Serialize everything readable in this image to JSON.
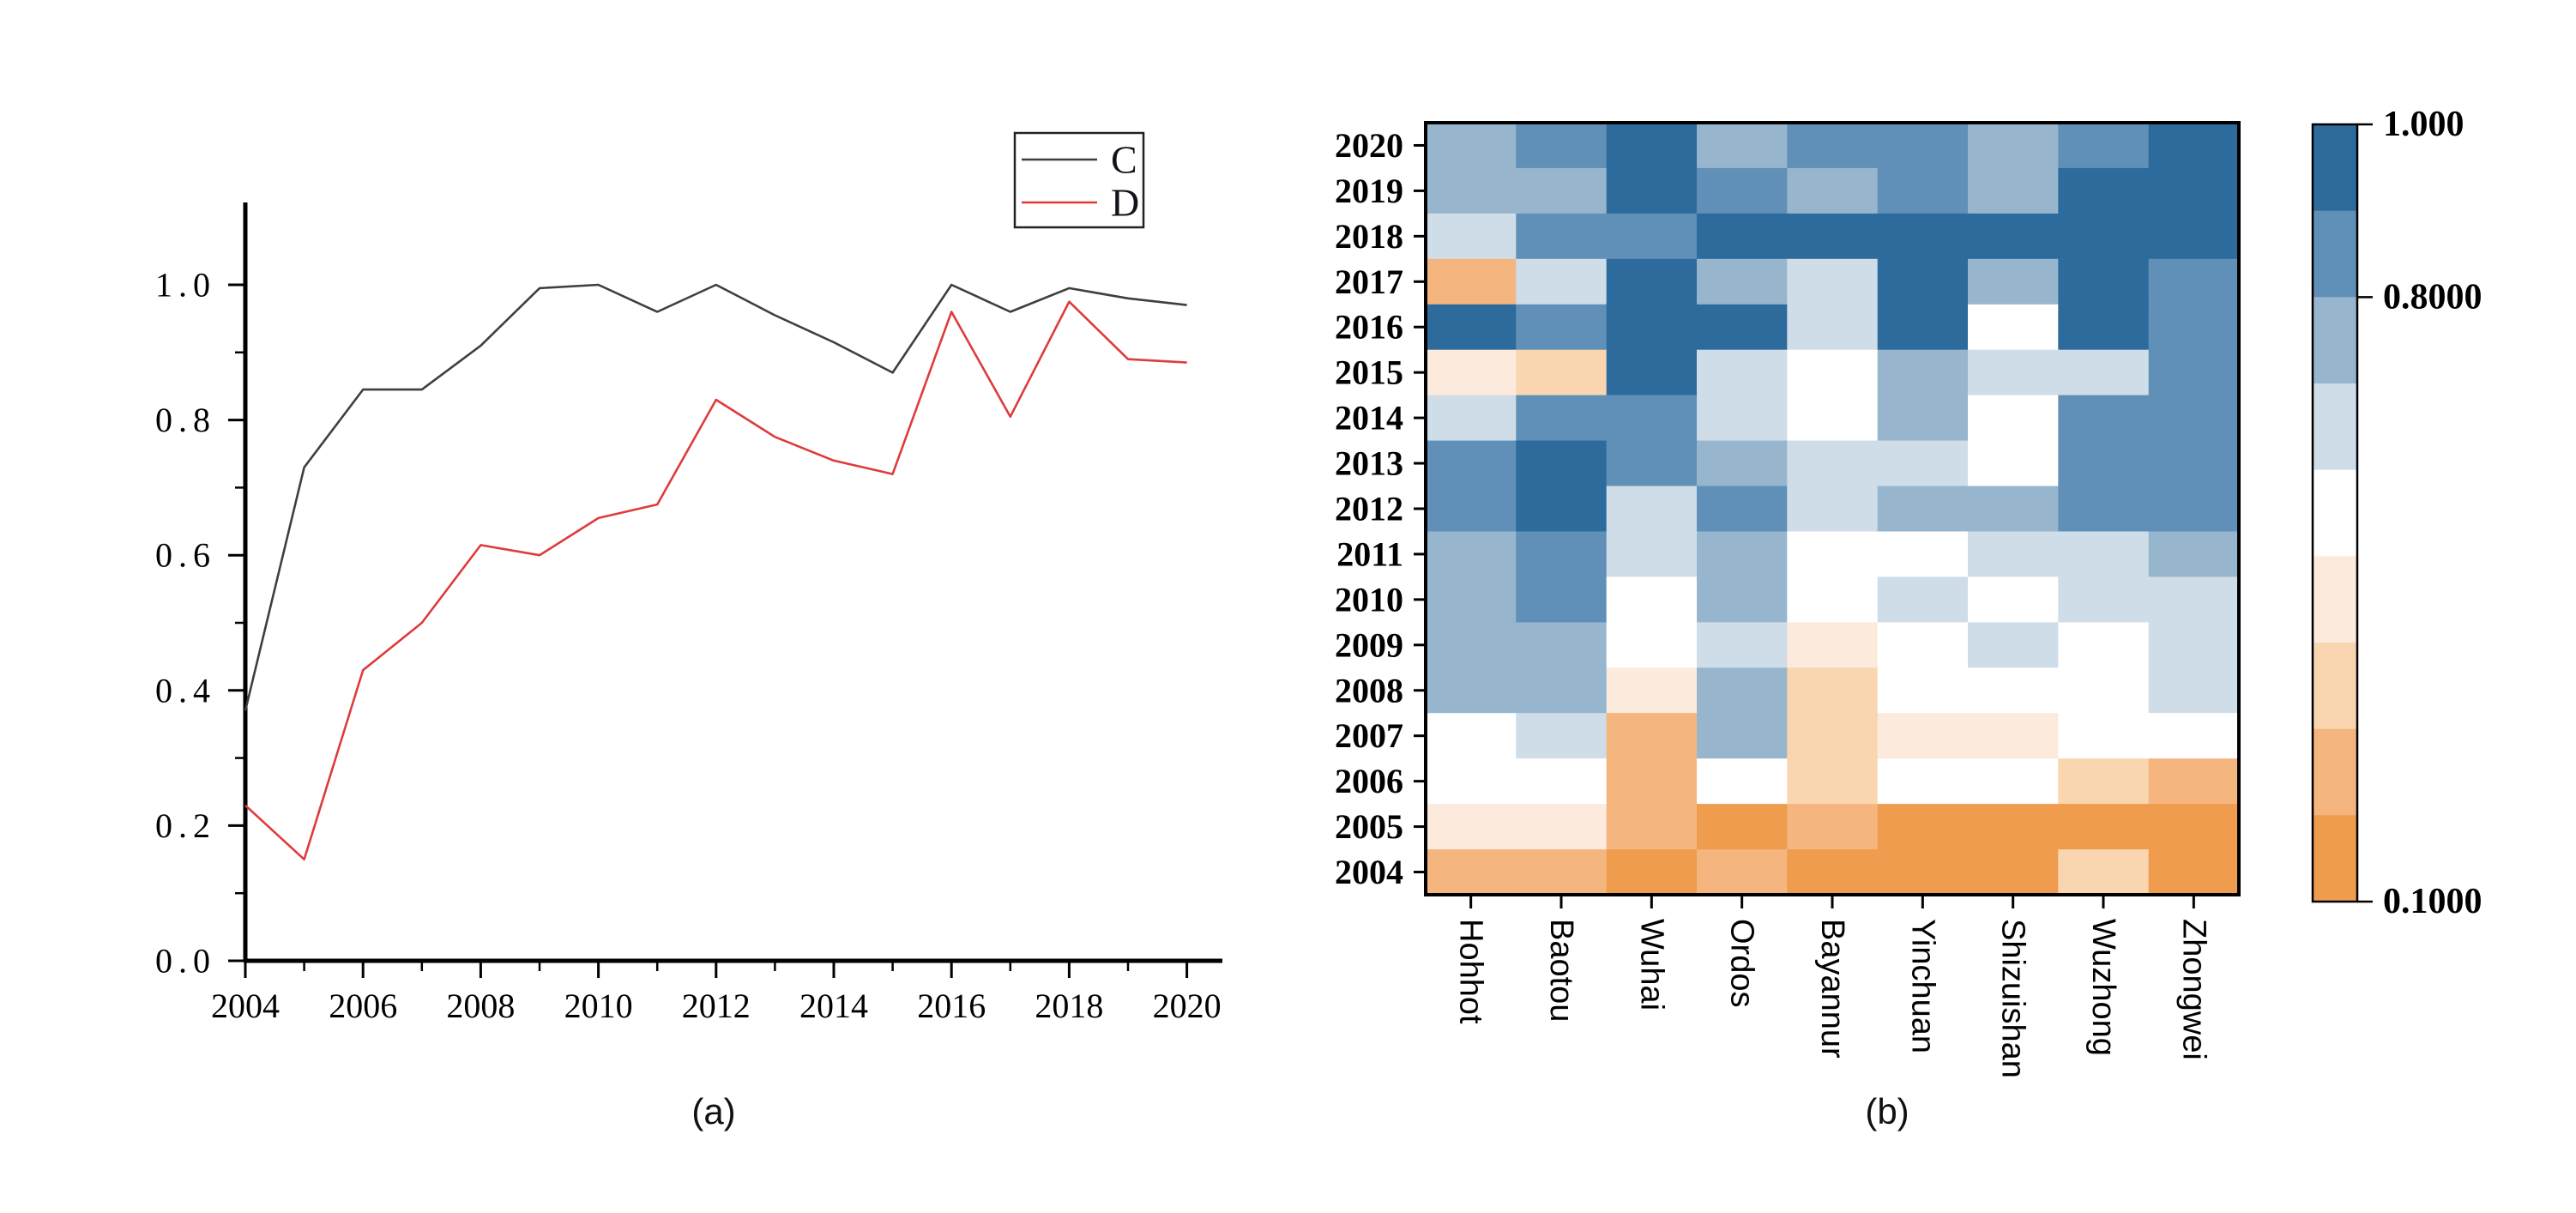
{
  "panel_a": {
    "caption": "(a)"
  },
  "panel_b": {
    "caption": "(b)"
  },
  "chart_data": [
    {
      "type": "line",
      "panel": "a",
      "title": "",
      "xlabel": "",
      "ylabel": "",
      "x": [
        2004,
        2005,
        2006,
        2007,
        2008,
        2009,
        2010,
        2011,
        2012,
        2013,
        2014,
        2015,
        2016,
        2017,
        2018,
        2019,
        2020
      ],
      "series": [
        {
          "name": "C",
          "color": "#3f3f3f",
          "values": [
            0.37,
            0.73,
            0.845,
            0.845,
            0.91,
            0.995,
            1.0,
            0.96,
            1.0,
            0.955,
            0.915,
            0.87,
            1.0,
            0.96,
            0.995,
            0.98,
            0.97
          ]
        },
        {
          "name": "D",
          "color": "#de3b3b",
          "values": [
            0.23,
            0.15,
            0.43,
            0.5,
            0.615,
            0.6,
            0.655,
            0.675,
            0.83,
            0.775,
            0.74,
            0.72,
            0.96,
            0.805,
            0.975,
            0.89,
            0.885
          ]
        }
      ],
      "xtick_labels": [
        "2004",
        "2006",
        "2008",
        "2010",
        "2012",
        "2014",
        "2016",
        "2018",
        "2020"
      ],
      "ytick_labels": [
        "0.0",
        "0.2",
        "0.4",
        "0.6",
        "0.8",
        "1.0"
      ],
      "ylim": [
        0.0,
        1.12
      ],
      "grid": false,
      "legend_position": "top-right-above-plot"
    },
    {
      "type": "heatmap",
      "panel": "b",
      "rows": [
        "2020",
        "2019",
        "2018",
        "2017",
        "2016",
        "2015",
        "2014",
        "2013",
        "2012",
        "2011",
        "2010",
        "2009",
        "2008",
        "2007",
        "2006",
        "2005",
        "2004"
      ],
      "columns": [
        "Hohhot",
        "Baotou",
        "Wuhai",
        "Ordos",
        "Bayannur",
        "Yinchuan",
        "Shizuishan",
        "Wuzhong",
        "Zhongwei"
      ],
      "cells": [
        [
          "B3",
          "B2",
          "B1",
          "B3",
          "B2",
          "B2",
          "B3",
          "B2",
          "B1"
        ],
        [
          "B3",
          "B3",
          "B1",
          "B2",
          "B3",
          "B2",
          "B3",
          "B1",
          "B1"
        ],
        [
          "B4",
          "B2",
          "B2",
          "B1",
          "B1",
          "B1",
          "B1",
          "B1",
          "B1"
        ],
        [
          "O2",
          "B4",
          "B1",
          "B3",
          "B4",
          "B1",
          "B3",
          "B1",
          "B2"
        ],
        [
          "B1",
          "B2",
          "B1",
          "B1",
          "B4",
          "B1",
          "W",
          "B1",
          "B2"
        ],
        [
          "O4",
          "O3",
          "B1",
          "B4",
          "W",
          "B3",
          "B4",
          "B4",
          "B2"
        ],
        [
          "B4",
          "B2",
          "B2",
          "B4",
          "W",
          "B3",
          "W",
          "B2",
          "B2"
        ],
        [
          "B2",
          "B1",
          "B2",
          "B3",
          "B4",
          "B4",
          "W",
          "B2",
          "B2"
        ],
        [
          "B2",
          "B1",
          "B4",
          "B2",
          "B4",
          "B3",
          "B3",
          "B2",
          "B2"
        ],
        [
          "B3",
          "B2",
          "B4",
          "B3",
          "W",
          "W",
          "B4",
          "B4",
          "B3"
        ],
        [
          "B3",
          "B2",
          "W",
          "B3",
          "W",
          "B4",
          "W",
          "B4",
          "B4"
        ],
        [
          "B3",
          "B3",
          "W",
          "B4",
          "O4",
          "W",
          "B4",
          "W",
          "B4"
        ],
        [
          "B3",
          "B3",
          "O4",
          "B3",
          "O3",
          "W",
          "W",
          "W",
          "B4"
        ],
        [
          "W",
          "B4",
          "O2",
          "B3",
          "O3",
          "O4",
          "O4",
          "W",
          "W"
        ],
        [
          "W",
          "W",
          "O2",
          "W",
          "O3",
          "W",
          "W",
          "O3",
          "O2"
        ],
        [
          "O4",
          "O4",
          "O2",
          "O1",
          "O2",
          "O1",
          "O1",
          "O1",
          "O1"
        ],
        [
          "O2",
          "O2",
          "O1",
          "O2",
          "O1",
          "O1",
          "O1",
          "O3",
          "O1"
        ]
      ],
      "palette": {
        "B1": {
          "color": "#2e6b9d",
          "value_range": [
            0.9,
            1.0
          ]
        },
        "B2": {
          "color": "#6090b7",
          "value_range": [
            0.8,
            0.9
          ]
        },
        "B3": {
          "color": "#97b6cd",
          "value_range": [
            0.7,
            0.8
          ]
        },
        "B4": {
          "color": "#cfdde9",
          "value_range": [
            0.6,
            0.7
          ]
        },
        "W": {
          "color": "#ffffff",
          "value_range": [
            0.5,
            0.6
          ]
        },
        "O4": {
          "color": "#fcebdc",
          "value_range": [
            0.4,
            0.5
          ]
        },
        "O3": {
          "color": "#f9d6b0",
          "value_range": [
            0.3,
            0.4
          ]
        },
        "O2": {
          "color": "#f5b57e",
          "value_range": [
            0.2,
            0.3
          ]
        },
        "O1": {
          "color": "#ef9c4e",
          "value_range": [
            0.1,
            0.2
          ]
        }
      },
      "colorbar": {
        "min": 0.1,
        "max": 1.0,
        "band_order_top_to_bottom": [
          "B1",
          "B2",
          "B3",
          "B4",
          "W",
          "O4",
          "O3",
          "O2",
          "O1"
        ],
        "tick_labels": [
          {
            "label": "1.000",
            "value": 1.0
          },
          {
            "label": "0.8000",
            "value": 0.8
          },
          {
            "label": "0.1000",
            "value": 0.1
          }
        ]
      }
    }
  ]
}
